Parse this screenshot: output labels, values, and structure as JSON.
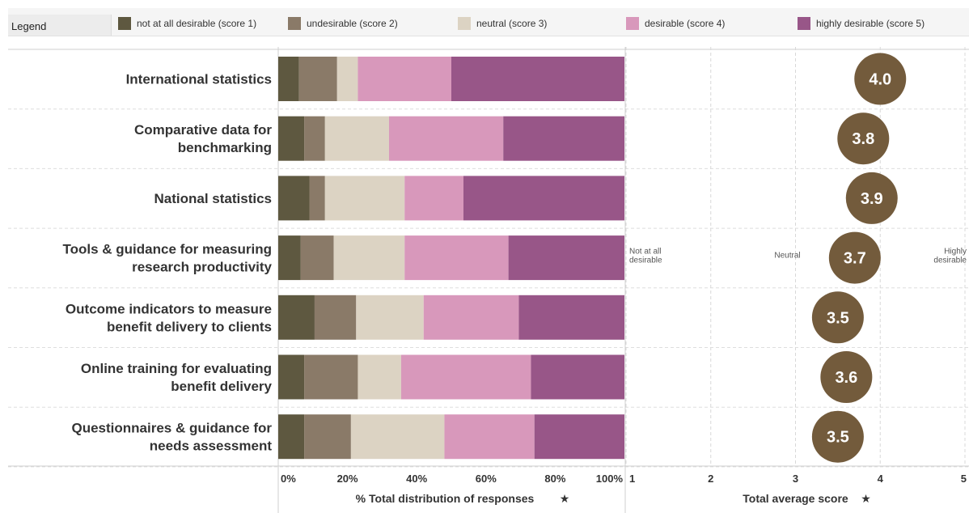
{
  "legend": {
    "title": "Legend",
    "entries": [
      {
        "label": "not at all desirable (score 1)",
        "color": "#5e5840"
      },
      {
        "label": "undesirable (score 2)",
        "color": "#8a7a68"
      },
      {
        "label": "neutral (score 3)",
        "color": "#dcd3c3"
      },
      {
        "label": "desirable (score 4)",
        "color": "#d898bb"
      },
      {
        "label": "highly desirable (score 5)",
        "color": "#985688"
      }
    ]
  },
  "chart_data": [
    {
      "type": "bar",
      "orientation": "horizontal-stacked",
      "categories": [
        [
          "International statistics"
        ],
        [
          "Comparative data for",
          "benchmarking"
        ],
        [
          "National statistics"
        ],
        [
          "Tools & guidance for measuring",
          "research productivity"
        ],
        [
          "Outcome indicators to measure",
          "benefit delivery to clients"
        ],
        [
          "Online training for evaluating",
          "benefit delivery"
        ],
        [
          "Questionnaires & guidance for",
          "needs assessment"
        ]
      ],
      "series": [
        {
          "name": "not at all desirable (score 1)",
          "color": "#5e5840",
          "values": [
            6,
            7.5,
            9,
            6.5,
            10.5,
            7.5,
            7.5
          ]
        },
        {
          "name": "undesirable (score 2)",
          "color": "#8a7a68",
          "values": [
            11,
            6,
            4.5,
            9.5,
            12,
            15.5,
            13.5
          ]
        },
        {
          "name": "neutral (score 3)",
          "color": "#dcd3c3",
          "values": [
            6,
            18.5,
            23,
            20.5,
            19.5,
            12.5,
            27
          ]
        },
        {
          "name": "desirable (score 4)",
          "color": "#d898bb",
          "values": [
            27,
            33,
            17,
            30,
            27.5,
            37.5,
            26
          ]
        },
        {
          "name": "highly desirable (score 5)",
          "color": "#985688",
          "values": [
            50,
            35,
            46.5,
            33.5,
            30.5,
            27,
            26
          ]
        }
      ],
      "xlim": [
        0,
        100
      ],
      "xticks": [
        "0%",
        "20%",
        "40%",
        "60%",
        "80%",
        "100%"
      ],
      "xlabel": "% Total distribution of responses"
    },
    {
      "type": "scatter",
      "categories_ref": "same as stacked bar",
      "values": [
        4.0,
        3.8,
        3.9,
        3.7,
        3.5,
        3.6,
        3.5
      ],
      "value_labels": [
        "4.0",
        "3.8",
        "3.9",
        "3.7",
        "3.5",
        "3.6",
        "3.5"
      ],
      "color": "#735b3c",
      "xlim": [
        1,
        5
      ],
      "xticks": [
        "1",
        "2",
        "3",
        "4",
        "5"
      ],
      "xlabel": "Total average score",
      "anchor_labels": {
        "low": [
          "Not at all",
          "desirable"
        ],
        "mid": [
          "Neutral"
        ],
        "high": [
          "Highly",
          "desirable"
        ]
      }
    }
  ]
}
